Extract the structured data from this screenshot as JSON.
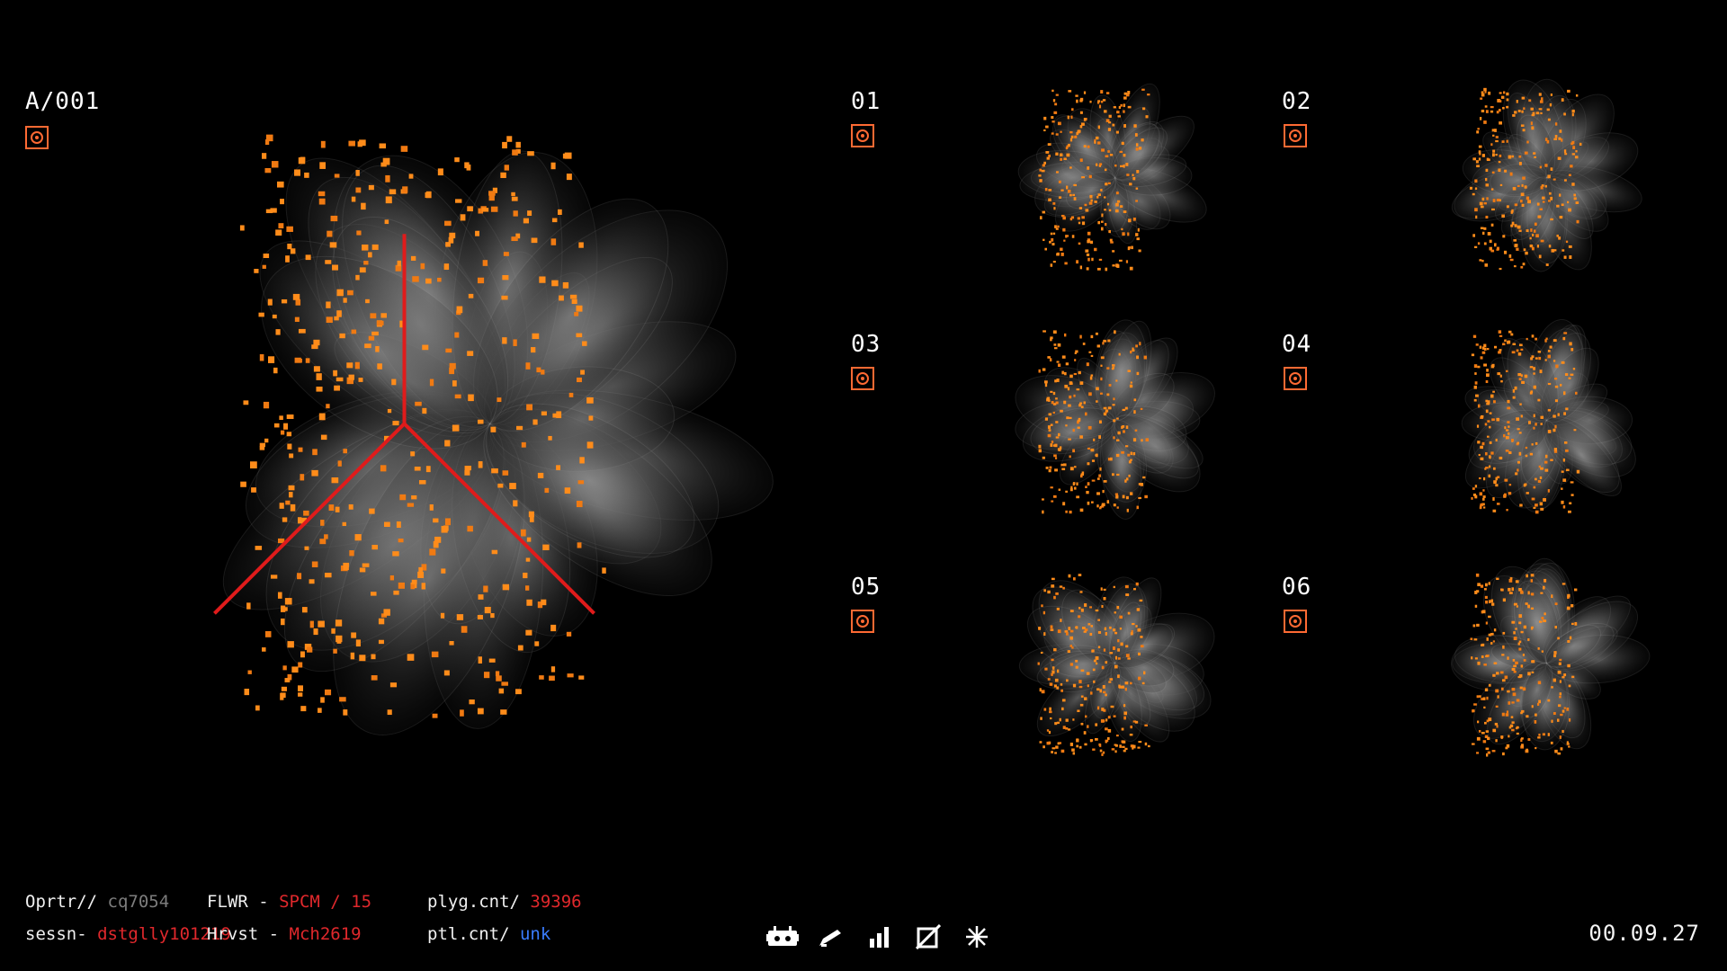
{
  "main": {
    "id": "A/001",
    "axes_color": "#e01b1b"
  },
  "thumbs": [
    {
      "label": "01"
    },
    {
      "label": "02"
    },
    {
      "label": "03"
    },
    {
      "label": "04"
    },
    {
      "label": "05"
    },
    {
      "label": "06"
    }
  ],
  "footer": {
    "operator_key": "Oprtr//",
    "operator_val": "cq7054",
    "session_key": "sessn-",
    "session_val": "dstglly101219",
    "flower_key": "FLWR -",
    "flower_val": "SPCM / 15",
    "harvest_key": "Hrvst -",
    "harvest_val": "Mch2619",
    "polygon_key": "plyg.cnt/",
    "polygon_val": "39396",
    "particle_key": "ptl.cnt/",
    "particle_val": "unk"
  },
  "toolbar": {
    "icons": [
      "robot-icon",
      "pen-icon",
      "bar-chart-icon",
      "no-image-icon",
      "sparkle-icon"
    ]
  },
  "timecode": "00.09.27",
  "colors": {
    "accent": "#ff6a33",
    "particle": "#ff8c1a",
    "red": "#e0282c",
    "blue": "#3a7cff"
  }
}
